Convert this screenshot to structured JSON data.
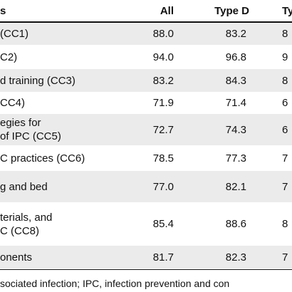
{
  "table": {
    "header": [
      "s",
      "All",
      "Type D",
      "Ty"
    ],
    "rows": [
      [
        [
          "(CC1)"
        ],
        "88.0",
        "83.2",
        "8"
      ],
      [
        [
          "C2)"
        ],
        "94.0",
        "96.8",
        "9"
      ],
      [
        [
          "d training (CC3)"
        ],
        "83.2",
        "84.3",
        "8"
      ],
      [
        [
          "CC4)"
        ],
        "71.9",
        "71.4",
        "6"
      ],
      [
        [
          "egies for",
          "of IPC (CC5)"
        ],
        "72.7",
        "74.3",
        "6"
      ],
      [
        [
          "C practices (CC6)"
        ],
        "78.5",
        "77.3",
        "7"
      ],
      [
        [
          "g and bed"
        ],
        "77.0",
        "82.1",
        "7"
      ],
      [
        [
          "terials, and",
          "C (CC8)"
        ],
        "85.4",
        "88.6",
        "8"
      ],
      [
        [
          "onents"
        ],
        "81.7",
        "82.3",
        "7"
      ]
    ]
  },
  "footnote": "sociated infection; IPC, infection prevention and con"
}
